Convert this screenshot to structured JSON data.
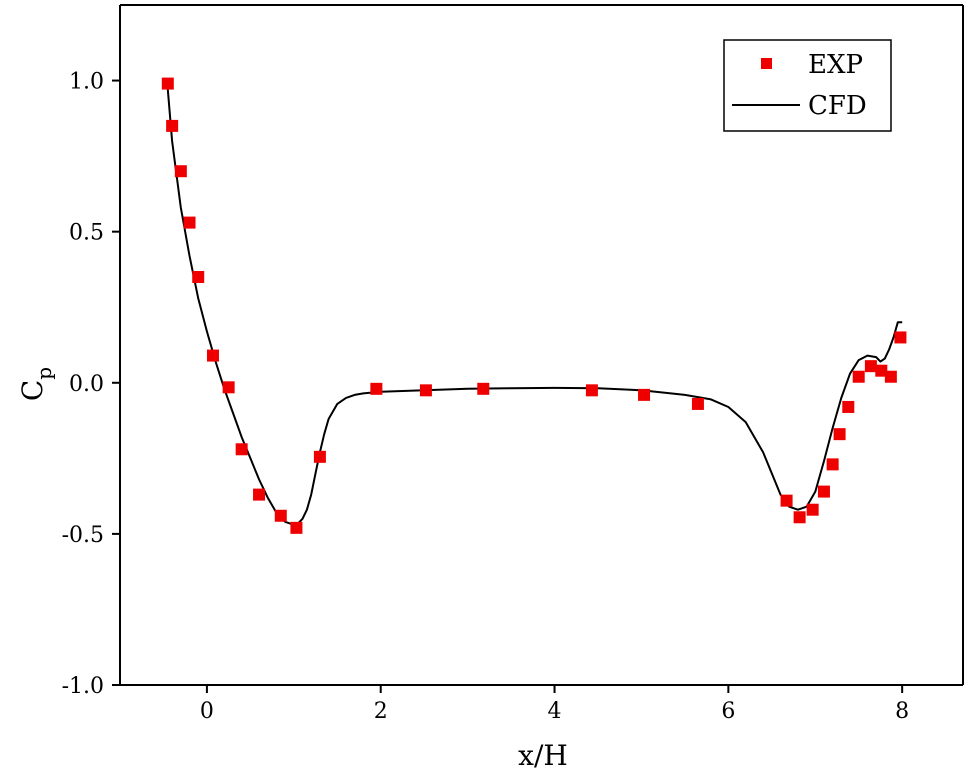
{
  "chart_data": {
    "type": "scatter",
    "xlabel": "x/H",
    "ylabel": "C",
    "ylabel_sub": "p",
    "xlim": [
      -1.0,
      8.7
    ],
    "ylim": [
      -1.0,
      1.25
    ],
    "x_ticks": [
      0,
      2,
      4,
      6,
      8
    ],
    "x_tick_labels": [
      "0",
      "2",
      "4",
      "6",
      "8"
    ],
    "y_ticks": [
      -1.0,
      -0.5,
      0.0,
      0.5,
      1.0
    ],
    "y_tick_labels": [
      "-1.0",
      "-0.5",
      "0.0",
      "0.5",
      "1.0"
    ],
    "grid": false,
    "legend_position": "top-right",
    "series": [
      {
        "name": "EXP",
        "kind": "markers",
        "marker": "square",
        "color": "#ee0000",
        "x": [
          -0.45,
          -0.4,
          -0.3,
          -0.2,
          -0.1,
          0.07,
          0.25,
          0.4,
          0.6,
          0.85,
          1.03,
          1.3,
          1.95,
          2.52,
          3.18,
          4.43,
          5.03,
          5.65,
          6.67,
          6.82,
          6.97,
          7.1,
          7.2,
          7.28,
          7.38,
          7.5,
          7.64,
          7.76,
          7.87,
          7.98
        ],
        "y": [
          0.99,
          0.85,
          0.7,
          0.53,
          0.35,
          0.09,
          -0.015,
          -0.22,
          -0.37,
          -0.44,
          -0.48,
          -0.245,
          -0.02,
          -0.025,
          -0.02,
          -0.025,
          -0.04,
          -0.07,
          -0.39,
          -0.445,
          -0.42,
          -0.36,
          -0.27,
          -0.17,
          -0.08,
          0.02,
          0.055,
          0.04,
          0.02,
          0.15
        ]
      },
      {
        "name": "CFD",
        "kind": "line",
        "color": "#000000",
        "x": [
          -0.45,
          -0.4,
          -0.3,
          -0.2,
          -0.1,
          0.0,
          0.1,
          0.2,
          0.3,
          0.4,
          0.5,
          0.6,
          0.7,
          0.8,
          0.9,
          1.0,
          1.05,
          1.1,
          1.15,
          1.2,
          1.25,
          1.3,
          1.35,
          1.4,
          1.5,
          1.6,
          1.7,
          1.8,
          2.0,
          2.5,
          3.0,
          3.5,
          4.0,
          4.5,
          5.0,
          5.5,
          5.8,
          6.0,
          6.2,
          6.4,
          6.5,
          6.6,
          6.7,
          6.8,
          6.9,
          7.0,
          7.1,
          7.2,
          7.3,
          7.4,
          7.5,
          7.6,
          7.7,
          7.75,
          7.8,
          7.85,
          7.9,
          7.95,
          8.0
        ],
        "y": [
          0.97,
          0.8,
          0.58,
          0.42,
          0.28,
          0.17,
          0.07,
          -0.02,
          -0.1,
          -0.18,
          -0.25,
          -0.32,
          -0.38,
          -0.43,
          -0.46,
          -0.47,
          -0.465,
          -0.45,
          -0.42,
          -0.37,
          -0.3,
          -0.23,
          -0.17,
          -0.12,
          -0.07,
          -0.05,
          -0.04,
          -0.035,
          -0.03,
          -0.025,
          -0.02,
          -0.018,
          -0.017,
          -0.018,
          -0.025,
          -0.04,
          -0.055,
          -0.08,
          -0.13,
          -0.23,
          -0.3,
          -0.37,
          -0.41,
          -0.42,
          -0.41,
          -0.36,
          -0.26,
          -0.15,
          -0.05,
          0.03,
          0.075,
          0.09,
          0.085,
          0.07,
          0.08,
          0.11,
          0.15,
          0.2,
          0.2
        ]
      }
    ]
  }
}
